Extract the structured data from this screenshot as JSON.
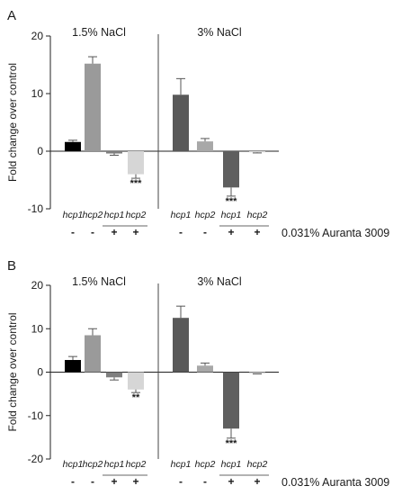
{
  "chart_data": [
    {
      "type": "bar",
      "panel_label": "A",
      "ylabel": "Fold change over control",
      "ylim": [
        -10,
        20
      ],
      "yticks": [
        20,
        10,
        0,
        -10
      ],
      "groups": [
        {
          "label": "1.5% NaCl",
          "bars": [
            {
              "category": "hcp1",
              "treatment": "-",
              "value": 1.6,
              "error": 0.3,
              "color": "#000000",
              "significance": ""
            },
            {
              "category": "hcp2",
              "treatment": "-",
              "value": 15.2,
              "error": 1.2,
              "color": "#9a9a9a",
              "significance": ""
            },
            {
              "category": "hcp1",
              "treatment": "+",
              "value": -0.4,
              "error": 0.3,
              "color": "#7f7f7f",
              "significance": ""
            },
            {
              "category": "hcp2",
              "treatment": "+",
              "value": -4.0,
              "error": 0.7,
              "color": "#d6d6d6",
              "significance": "***"
            }
          ]
        },
        {
          "label": "3% NaCl",
          "bars": [
            {
              "category": "hcp1",
              "treatment": "-",
              "value": 9.8,
              "error": 2.8,
              "color": "#595959",
              "significance": ""
            },
            {
              "category": "hcp2",
              "treatment": "-",
              "value": 1.7,
              "error": 0.5,
              "color": "#a8a8a8",
              "significance": ""
            },
            {
              "category": "hcp1",
              "treatment": "+",
              "value": -6.3,
              "error": 1.5,
              "color": "#5f5f5f",
              "significance": "***"
            },
            {
              "category": "hcp2",
              "treatment": "+",
              "value": -0.2,
              "error": 0.1,
              "color": "#d9d9d9",
              "significance": ""
            }
          ]
        }
      ],
      "treatment_label": "0.031% Auranta 3009"
    },
    {
      "type": "bar",
      "panel_label": "B",
      "ylabel": "Fold change over control",
      "ylim": [
        -20,
        20
      ],
      "yticks": [
        20,
        10,
        0,
        -10,
        -20
      ],
      "groups": [
        {
          "label": "1.5% NaCl",
          "bars": [
            {
              "category": "hcp1",
              "treatment": "-",
              "value": 2.8,
              "error": 0.8,
              "color": "#000000",
              "significance": ""
            },
            {
              "category": "hcp2",
              "treatment": "-",
              "value": 8.5,
              "error": 1.5,
              "color": "#9a9a9a",
              "significance": ""
            },
            {
              "category": "hcp1",
              "treatment": "+",
              "value": -1.2,
              "error": 0.6,
              "color": "#7f7f7f",
              "significance": ""
            },
            {
              "category": "hcp2",
              "treatment": "+",
              "value": -4.0,
              "error": 0.7,
              "color": "#d6d6d6",
              "significance": "**"
            }
          ]
        },
        {
          "label": "3% NaCl",
          "bars": [
            {
              "category": "hcp1",
              "treatment": "-",
              "value": 12.5,
              "error": 2.7,
              "color": "#595959",
              "significance": ""
            },
            {
              "category": "hcp2",
              "treatment": "-",
              "value": 1.5,
              "error": 0.6,
              "color": "#a8a8a8",
              "significance": ""
            },
            {
              "category": "hcp1",
              "treatment": "+",
              "value": -13.0,
              "error": 2.2,
              "color": "#5f5f5f",
              "significance": "***"
            },
            {
              "category": "hcp2",
              "treatment": "+",
              "value": -0.3,
              "error": 0.1,
              "color": "#d9d9d9",
              "significance": ""
            }
          ]
        }
      ],
      "treatment_label": "0.031% Auranta 3009"
    }
  ]
}
